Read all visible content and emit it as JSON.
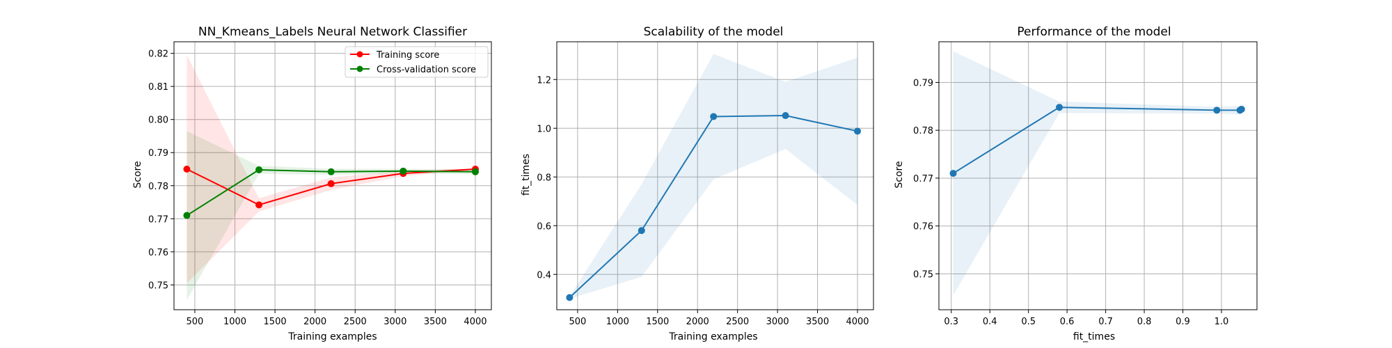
{
  "chart_data": [
    {
      "type": "line",
      "title": "NN_Kmeans_Labels Neural Network Classifier",
      "xlabel": "Training examples",
      "ylabel": "Score",
      "xlim": [
        240,
        4200
      ],
      "ylim": [
        0.7425,
        0.8235
      ],
      "xticks": [
        500,
        1000,
        1500,
        2000,
        2500,
        3000,
        3500,
        4000
      ],
      "xtick_labels": [
        "500",
        "1000",
        "1500",
        "2000",
        "2500",
        "3000",
        "3500",
        "4000"
      ],
      "yticks": [
        0.75,
        0.76,
        0.77,
        0.78,
        0.79,
        0.8,
        0.81,
        0.82
      ],
      "ytick_labels": [
        "0.75",
        "0.76",
        "0.77",
        "0.78",
        "0.79",
        "0.80",
        "0.81",
        "0.82"
      ],
      "grid": true,
      "legend": "top-right",
      "x": [
        400,
        1300,
        2200,
        3100,
        4000
      ],
      "series": [
        {
          "name": "Training score",
          "color": "#ff0000",
          "values": [
            0.785,
            0.7742,
            0.7806,
            0.7837,
            0.785
          ],
          "band_upper": [
            0.8195,
            0.7762,
            0.7825,
            0.7845,
            0.7853
          ],
          "band_lower": [
            0.7505,
            0.7722,
            0.7787,
            0.7829,
            0.7847
          ]
        },
        {
          "name": "Cross-validation score",
          "color": "#008000",
          "values": [
            0.771,
            0.7848,
            0.7842,
            0.7844,
            0.7842
          ],
          "band_upper": [
            0.7965,
            0.786,
            0.7851,
            0.7851,
            0.7849
          ],
          "band_lower": [
            0.7455,
            0.7836,
            0.7833,
            0.7837,
            0.7835
          ]
        }
      ]
    },
    {
      "type": "line",
      "title": "Scalability of the model",
      "xlabel": "Training examples",
      "ylabel": "fit_times",
      "xlim": [
        240,
        4200
      ],
      "ylim": [
        0.255,
        1.355
      ],
      "xticks": [
        500,
        1000,
        1500,
        2000,
        2500,
        3000,
        3500,
        4000
      ],
      "xtick_labels": [
        "500",
        "1000",
        "1500",
        "2000",
        "2500",
        "3000",
        "3500",
        "4000"
      ],
      "yticks": [
        0.4,
        0.6,
        0.8,
        1.0,
        1.2
      ],
      "ytick_labels": [
        "0.4",
        "0.6",
        "0.8",
        "1.0",
        "1.2"
      ],
      "grid": true,
      "x": [
        400,
        1300,
        2200,
        3100,
        4000
      ],
      "series": [
        {
          "color": "#1f77b4",
          "values": [
            0.305,
            0.58,
            1.048,
            1.052,
            0.988
          ],
          "band_upper": [
            0.31,
            0.77,
            1.305,
            1.19,
            1.29
          ],
          "band_lower": [
            0.3,
            0.39,
            0.79,
            0.915,
            0.685
          ]
        }
      ]
    },
    {
      "type": "line",
      "title": "Performance of the model",
      "xlabel": "fit_times",
      "ylabel": "Score",
      "xlim": [
        0.268,
        1.092
      ],
      "ylim": [
        0.7425,
        0.7985
      ],
      "xticks": [
        0.3,
        0.4,
        0.5,
        0.6,
        0.7,
        0.8,
        0.9,
        1.0
      ],
      "xtick_labels": [
        "0.3",
        "0.4",
        "0.5",
        "0.6",
        "0.7",
        "0.8",
        "0.9",
        "1.0"
      ],
      "yticks": [
        0.75,
        0.76,
        0.77,
        0.78,
        0.79
      ],
      "ytick_labels": [
        "0.75",
        "0.76",
        "0.77",
        "0.78",
        "0.79"
      ],
      "grid": true,
      "x": [
        0.305,
        0.58,
        0.988,
        1.048,
        1.052
      ],
      "series": [
        {
          "color": "#1f77b4",
          "values": [
            0.771,
            0.7848,
            0.7842,
            0.7842,
            0.7844
          ],
          "band_upper": [
            0.7965,
            0.786,
            0.7849,
            0.7851,
            0.7851
          ],
          "band_lower": [
            0.7455,
            0.7836,
            0.7835,
            0.7833,
            0.7837
          ]
        }
      ]
    }
  ]
}
